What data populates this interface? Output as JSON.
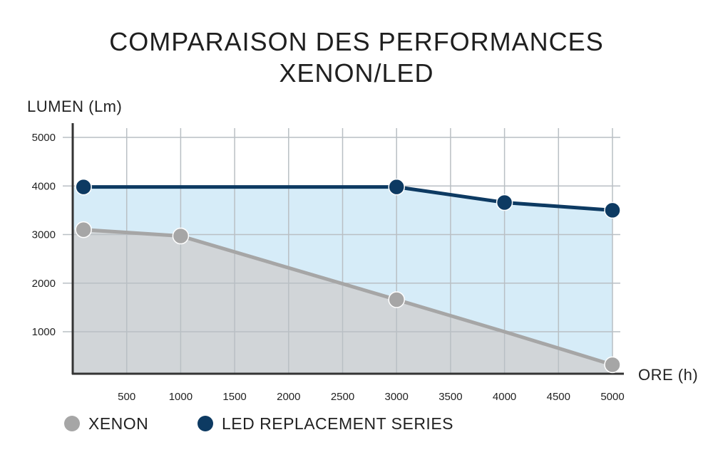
{
  "chart_data": {
    "type": "area",
    "title": "COMPARAISON DES PERFORMANCES",
    "subtitle": "XENON/LED",
    "ylabel": "LUMEN (Lm)",
    "xlabel": "ORE (h)",
    "xlim": [
      0,
      5000
    ],
    "ylim": [
      200,
      5100
    ],
    "x_ticks": [
      500,
      1000,
      1500,
      2000,
      2500,
      3000,
      3500,
      4000,
      4500,
      5000
    ],
    "y_ticks": [
      1000,
      2000,
      3000,
      4000,
      5000
    ],
    "grid": true,
    "legend_position": "bottom-left",
    "series": [
      {
        "name": "XENON",
        "color": "#a6a6a6",
        "fill": "#d1d5d8",
        "points": [
          [
            100,
            3100
          ],
          [
            1000,
            2970
          ],
          [
            3000,
            1660
          ],
          [
            4000,
            1000
          ],
          [
            5000,
            320
          ]
        ],
        "marked_points": [
          [
            100,
            3100
          ],
          [
            1000,
            2970
          ],
          [
            3000,
            1660
          ],
          [
            5000,
            320
          ]
        ]
      },
      {
        "name": "LED REPLACEMENT SERIES",
        "color": "#0d3a62",
        "fill": "#d6ecf8",
        "points": [
          [
            100,
            3980
          ],
          [
            3000,
            3980
          ],
          [
            4000,
            3660
          ],
          [
            5000,
            3500
          ]
        ],
        "marked_points": [
          [
            100,
            3980
          ],
          [
            3000,
            3980
          ],
          [
            4000,
            3660
          ],
          [
            5000,
            3500
          ]
        ]
      }
    ]
  }
}
